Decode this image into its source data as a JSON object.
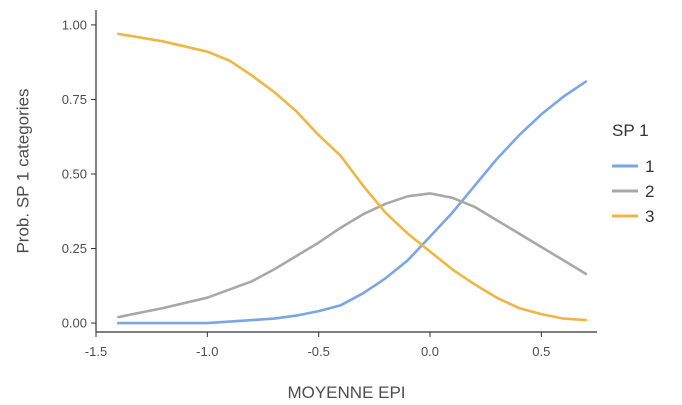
{
  "chart_data": {
    "type": "line",
    "xlabel": "MOYENNE EPI",
    "ylabel": "Prob. SP 1 categories",
    "xlim": [
      -1.5,
      0.75
    ],
    "ylim": [
      -0.03,
      1.05
    ],
    "x_ticks": [
      -1.5,
      -1.0,
      -0.5,
      0.0,
      0.5
    ],
    "x_tick_labels": [
      "-1.5",
      "-1.0",
      "-0.5",
      "0.0",
      "0.5"
    ],
    "y_ticks": [
      0.0,
      0.25,
      0.5,
      0.75,
      1.0
    ],
    "y_tick_labels": [
      "0.00",
      "0.25",
      "0.50",
      "0.75",
      "1.00"
    ],
    "grid": false,
    "legend": {
      "title": "SP 1",
      "position": "right"
    },
    "series": [
      {
        "name": "1",
        "color": "#7aa6e8",
        "x": [
          -1.4,
          -1.2,
          -1.0,
          -0.9,
          -0.8,
          -0.7,
          -0.6,
          -0.5,
          -0.4,
          -0.3,
          -0.2,
          -0.1,
          0.0,
          0.1,
          0.2,
          0.3,
          0.4,
          0.5,
          0.6,
          0.7
        ],
        "y": [
          0.0,
          0.0,
          0.0,
          0.005,
          0.01,
          0.015,
          0.025,
          0.04,
          0.06,
          0.1,
          0.15,
          0.21,
          0.29,
          0.37,
          0.46,
          0.55,
          0.63,
          0.7,
          0.76,
          0.81
        ]
      },
      {
        "name": "2",
        "color": "#a8a8a8",
        "x": [
          -1.4,
          -1.2,
          -1.0,
          -0.8,
          -0.7,
          -0.6,
          -0.5,
          -0.4,
          -0.3,
          -0.2,
          -0.1,
          0.0,
          0.1,
          0.2,
          0.3,
          0.4,
          0.5,
          0.6,
          0.7
        ],
        "y": [
          0.02,
          0.05,
          0.085,
          0.14,
          0.18,
          0.225,
          0.27,
          0.32,
          0.365,
          0.4,
          0.425,
          0.435,
          0.42,
          0.39,
          0.345,
          0.3,
          0.255,
          0.21,
          0.165
        ]
      },
      {
        "name": "3",
        "color": "#f0b642",
        "x": [
          -1.4,
          -1.2,
          -1.0,
          -0.9,
          -0.8,
          -0.7,
          -0.6,
          -0.5,
          -0.4,
          -0.3,
          -0.2,
          -0.1,
          0.0,
          0.1,
          0.2,
          0.3,
          0.4,
          0.5,
          0.6,
          0.7
        ],
        "y": [
          0.97,
          0.945,
          0.91,
          0.88,
          0.83,
          0.775,
          0.71,
          0.63,
          0.56,
          0.46,
          0.37,
          0.3,
          0.24,
          0.18,
          0.13,
          0.085,
          0.05,
          0.03,
          0.015,
          0.01
        ]
      }
    ]
  }
}
